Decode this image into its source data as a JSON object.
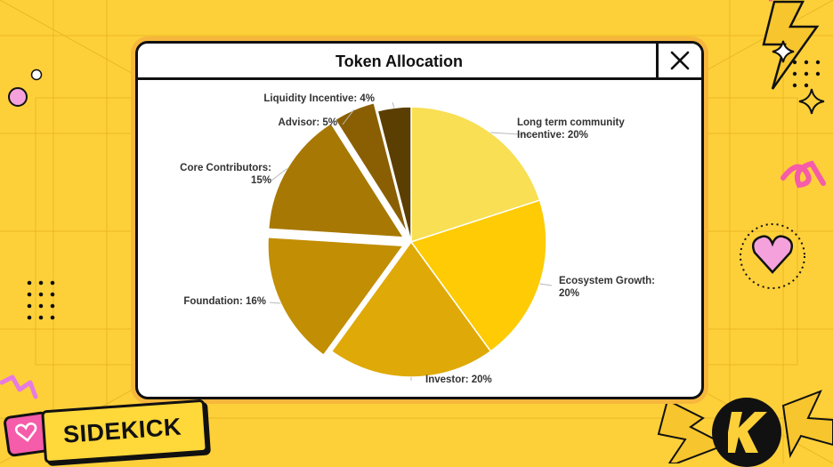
{
  "window": {
    "title": "Token Allocation"
  },
  "brand": {
    "label": "SIDEKICK"
  },
  "icons": {
    "close": "close-icon",
    "logo": "sidekick-k-logo",
    "heart": "heart-icon",
    "lightning": "lightning-icon",
    "sparkle": "sparkle-icon"
  },
  "colors": {
    "background": "#fdd03a",
    "accent_pink": "#f55ca9",
    "outline": "#111111"
  },
  "chart_data": {
    "type": "pie",
    "title": "Token Allocation",
    "slices": [
      {
        "label": "Long term community Incentive: 20%",
        "label_lines": [
          "Long term community",
          "Incentive: 20%"
        ],
        "value": 20,
        "color": "#f8df53",
        "explode": 0
      },
      {
        "label": "Ecosystem Growth: 20%",
        "label_lines": [
          "Ecosystem Growth:",
          "20%"
        ],
        "value": 20,
        "color": "#fecb04",
        "explode": 0
      },
      {
        "label": "Investor: 20%",
        "label_lines": [
          "Investor: 20%"
        ],
        "value": 20,
        "color": "#dfa907",
        "explode": 0
      },
      {
        "label": "Foundation: 16%",
        "label_lines": [
          "Foundation: 16%"
        ],
        "value": 16,
        "color": "#c18e04",
        "explode": 1
      },
      {
        "label": "Core Contributors: 15%",
        "label_lines": [
          "Core Contributors:",
          "15%"
        ],
        "value": 15,
        "color": "#a77803",
        "explode": 1
      },
      {
        "label": "Advisor: 5%",
        "label_lines": [
          "Advisor: 5%"
        ],
        "value": 5,
        "color": "#8a5f04",
        "explode": 1
      },
      {
        "label": "Liquidity Incentive: 4%",
        "label_lines": [
          "Liquidity Incentive: 4%"
        ],
        "value": 4,
        "color": "#5b3e02",
        "explode": 0
      }
    ],
    "start_angle_deg": 0,
    "direction": "clockwise",
    "legend": "none"
  }
}
